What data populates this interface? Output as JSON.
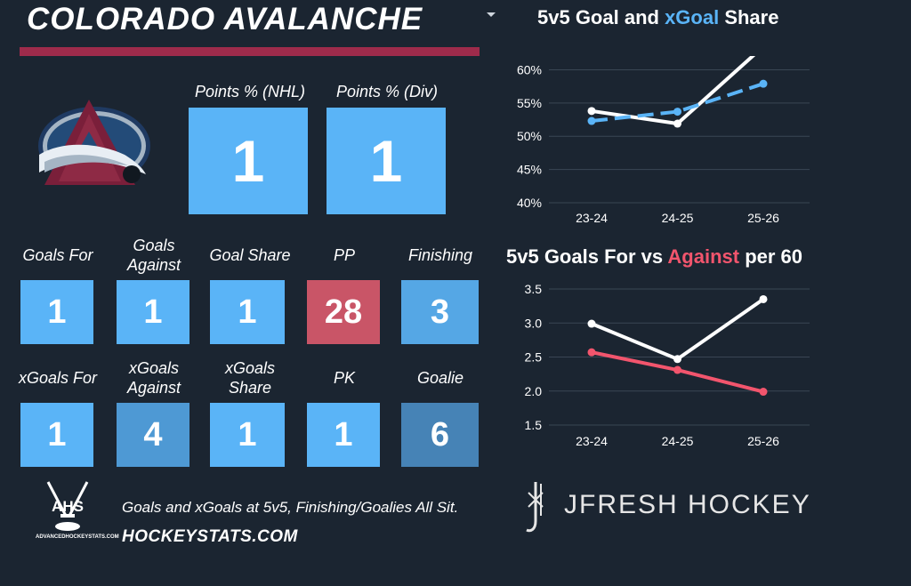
{
  "header": {
    "title": "COLORADO AVALANCHE"
  },
  "points": [
    {
      "label": "Points % (NHL)",
      "value": "1",
      "color": "#5ab4f7"
    },
    {
      "label": "Points % (Div)",
      "value": "1",
      "color": "#5ab4f7"
    }
  ],
  "tiles_row1": [
    {
      "label": "Goals For",
      "value": "1",
      "color": "#5ab4f7"
    },
    {
      "label": "Goals Against",
      "value": "1",
      "color": "#5ab4f7"
    },
    {
      "label": "Goal Share",
      "value": "1",
      "color": "#5ab4f7"
    },
    {
      "label": "PP",
      "value": "28",
      "color": "#c95567"
    },
    {
      "label": "Finishing",
      "value": "3",
      "color": "#55a7e5"
    }
  ],
  "tiles_row2": [
    {
      "label": "xGoals For",
      "value": "1",
      "color": "#5ab4f7"
    },
    {
      "label": "xGoals Against",
      "value": "4",
      "color": "#4e99d4"
    },
    {
      "label": "xGoals Share",
      "value": "1",
      "color": "#5ab4f7"
    },
    {
      "label": "PK",
      "value": "1",
      "color": "#5ab4f7"
    },
    {
      "label": "Goalie",
      "value": "6",
      "color": "#4683b6"
    }
  ],
  "footer": {
    "note": "Goals and xGoals at 5v5, Finishing/Goalies All Sit.",
    "site": "HOCKEYSTATS.COM",
    "ahs_logo_text": "AHS",
    "ahs_small_text": "ADVANCEDHOCKEYSTATS.COM",
    "brand": "JFRESH HOCKEY"
  },
  "chart_titles": {
    "top": {
      "part1": "5v5 Goal and ",
      "part2": "xGoal",
      "part3": " Share"
    },
    "bottom": {
      "part1": "5v5 Goals For vs ",
      "part2": "Against",
      "part3": " per 60"
    }
  },
  "chart_data": [
    {
      "type": "line",
      "title": "5v5 Goal and xGoal Share",
      "categories": [
        "23-24",
        "24-25",
        "25-26"
      ],
      "yticks": [
        "40%",
        "45%",
        "50%",
        "55%",
        "60%"
      ],
      "ylim": [
        40,
        61
      ],
      "series": [
        {
          "name": "Goal",
          "values": [
            53.8,
            51.9,
            63.5
          ],
          "color": "#ffffff",
          "style": "solid"
        },
        {
          "name": "xGoal",
          "values": [
            52.3,
            53.7,
            57.9
          ],
          "color": "#5ab4f7",
          "style": "dashed"
        }
      ]
    },
    {
      "type": "line",
      "title": "5v5 Goals For vs Against per 60",
      "categories": [
        "23-24",
        "24-25",
        "25-26"
      ],
      "yticks": [
        "1.5",
        "2.0",
        "2.5",
        "3.0",
        "3.5"
      ],
      "ylim": [
        1.5,
        3.5
      ],
      "series": [
        {
          "name": "For",
          "values": [
            2.99,
            2.47,
            3.35
          ],
          "color": "#ffffff",
          "style": "solid"
        },
        {
          "name": "Against",
          "values": [
            2.57,
            2.31,
            1.99
          ],
          "color": "#f2556d",
          "style": "solid"
        }
      ]
    }
  ],
  "colors": {
    "background": "#1b2531",
    "accent_bar": "#9e2b4b",
    "tile_blue": "#5ab4f7"
  }
}
